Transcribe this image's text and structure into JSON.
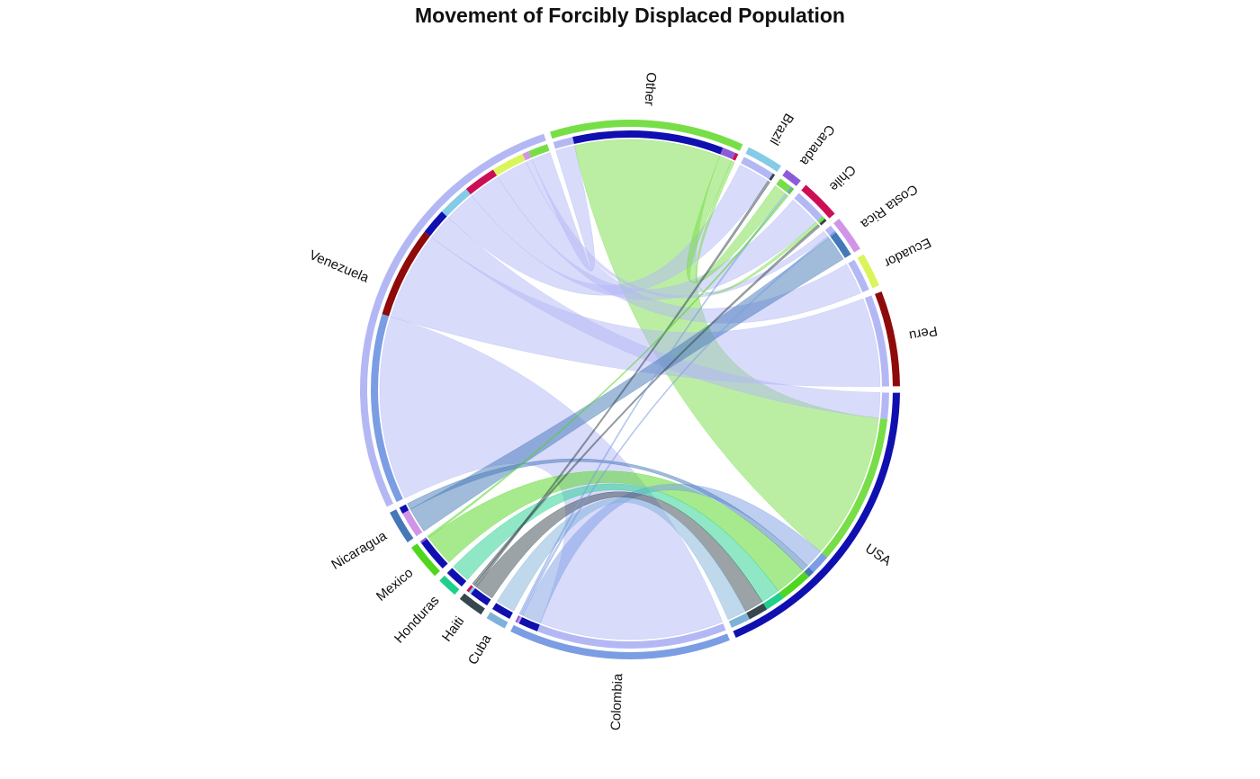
{
  "chart_data": {
    "type": "chord",
    "title": "Movement of Forcibly Displaced Population",
    "groups": [
      {
        "name": "USA",
        "color": "#1010b0"
      },
      {
        "name": "Colombia",
        "color": "#7b9de3"
      },
      {
        "name": "Cuba",
        "color": "#7fb2d8"
      },
      {
        "name": "Haiti",
        "color": "#37474f"
      },
      {
        "name": "Honduras",
        "color": "#1fd08c"
      },
      {
        "name": "Mexico",
        "color": "#4fd61e"
      },
      {
        "name": "Nicaragua",
        "color": "#4478b8"
      },
      {
        "name": "Venezuela",
        "color": "#b3b8f5"
      },
      {
        "name": "Other",
        "color": "#77de48"
      },
      {
        "name": "Brazil",
        "color": "#84cbe8"
      },
      {
        "name": "Canada",
        "color": "#8c5cd8"
      },
      {
        "name": "Chile",
        "color": "#cc0f55"
      },
      {
        "name": "Costa Rica",
        "color": "#d195e8"
      },
      {
        "name": "Ecuador",
        "color": "#d9f55a"
      },
      {
        "name": "Peru",
        "color": "#8f0a0a"
      }
    ],
    "flows": [
      {
        "source": "Venezuela",
        "target": "Colombia",
        "value": 29
      },
      {
        "source": "Venezuela",
        "target": "Peru",
        "value": 14
      },
      {
        "source": "Venezuela",
        "target": "USA",
        "value": 4
      },
      {
        "source": "Venezuela",
        "target": "Brazil",
        "value": 5
      },
      {
        "source": "Venezuela",
        "target": "Chile",
        "value": 5
      },
      {
        "source": "Venezuela",
        "target": "Ecuador",
        "value": 5
      },
      {
        "source": "Venezuela",
        "target": "Costa Rica",
        "value": 1
      },
      {
        "source": "Venezuela",
        "target": "Other",
        "value": 3
      },
      {
        "source": "Other",
        "target": "USA",
        "value": 23
      },
      {
        "source": "Other",
        "target": "Canada",
        "value": 2
      },
      {
        "source": "Other",
        "target": "Chile",
        "value": 0.5
      },
      {
        "source": "Colombia",
        "target": "USA",
        "value": 3
      },
      {
        "source": "Colombia",
        "target": "Costa Rica",
        "value": 0.3
      },
      {
        "source": "Colombia",
        "target": "Canada",
        "value": 0.3
      },
      {
        "source": "Nicaragua",
        "target": "Costa Rica",
        "value": 4
      },
      {
        "source": "Nicaragua",
        "target": "USA",
        "value": 1
      },
      {
        "source": "Mexico",
        "target": "USA",
        "value": 5
      },
      {
        "source": "Mexico",
        "target": "Canada",
        "value": 0.3
      },
      {
        "source": "Honduras",
        "target": "USA",
        "value": 3
      },
      {
        "source": "Haiti",
        "target": "USA",
        "value": 3
      },
      {
        "source": "Haiti",
        "target": "Brazil",
        "value": 0.4
      },
      {
        "source": "Haiti",
        "target": "Chile",
        "value": 0.4
      },
      {
        "source": "Cuba",
        "target": "USA",
        "value": 3
      }
    ]
  }
}
